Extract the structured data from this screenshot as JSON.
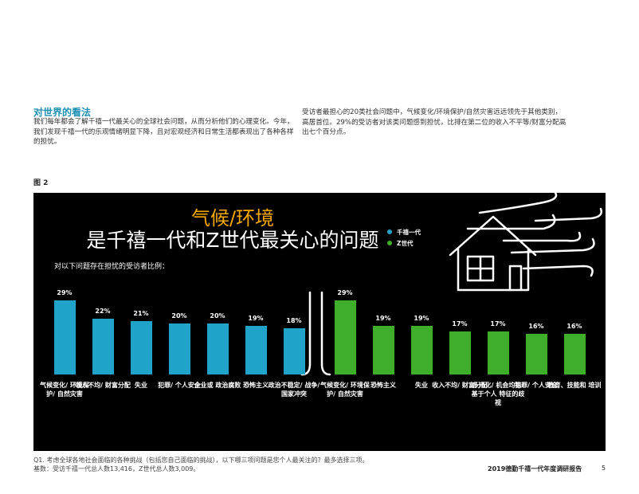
{
  "intro": {
    "heading": "对世界的看法",
    "left_text": "我们每年都会了解千禧一代最关心的全球社会问题，从而分析他们的心理变化。今年，\n我们发现千禧一代的乐观情绪明显下降，且对宏观经济和日常生活都表现出了各种各样\n的担忧。",
    "right_text": "受访者最担心的20类社会问题中，气候变化/环境保护/自然灾害远远领先于其他类别，\n高居首位。29%的受访者对该类问题感到担忧，比排在第二位的收入不平等/财富分配高\n出七个百分点。"
  },
  "figure": {
    "label": "图 2",
    "title_highlight": "气候/环境",
    "title": "是千禧一代和Z世代最关心的问题",
    "subtitle": "对以下问题存在担忧的受访者比例："
  },
  "chart_data": [
    {
      "type": "bar",
      "categories": [
        "气候变化/\n环境保护/\n自然灾害",
        "收入不均/\n财富分配",
        "失业",
        "犯罪/\n个人安全",
        "企业或\n政治腐败",
        "恐怖主义",
        "政治不稳定/\n战争/\n国家冲突"
      ],
      "series": [
        {
          "name": "千禧一代",
          "color": "#1fa3c8",
          "values": [
            29,
            22,
            21,
            20,
            20,
            19,
            18
          ],
          "value_labels": [
            "29%",
            "22%",
            "21%",
            "20%",
            "20%",
            "19%",
            "18%"
          ]
        }
      ]
    },
    {
      "type": "bar",
      "categories": [
        "气候变化/\n环境保护/\n自然灾害",
        "恐怖主义",
        "失业",
        "收入不均/\n财富分配",
        "多元化/\n机会均等/\n基于个人\n特征的歧视",
        "犯罪/\n个人安全",
        "教育、技能和\n培训"
      ],
      "series": [
        {
          "name": "Z世代",
          "color": "#3fae2a",
          "values": [
            29,
            19,
            19,
            17,
            17,
            16,
            16
          ],
          "value_labels": [
            "29%",
            "19%",
            "19%",
            "17%",
            "17%",
            "16%",
            "16%"
          ]
        }
      ]
    }
  ],
  "footnote": {
    "q": "Q1. 考虑全球各地社会面临的各种挑战（包括您自己面临的挑战），以下哪三项问题是您个人最关注的？最多选择三项。",
    "base": "基数：受访千禧一代总人数13,416，Z世代总人数3,009。"
  },
  "footer": {
    "title": "2019德勤千禧一代年度调研报告",
    "page": "5"
  }
}
